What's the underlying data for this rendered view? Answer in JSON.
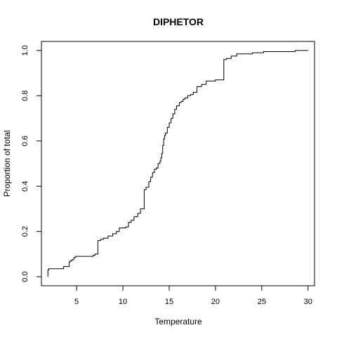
{
  "chart_data": {
    "type": "line",
    "step": true,
    "title": "DIPHETOR",
    "xlabel": "Temperature",
    "ylabel": "Proportion of total",
    "xlim": [
      1.2,
      30.7
    ],
    "ylim": [
      -0.04,
      1.04
    ],
    "xticks": [
      5,
      10,
      15,
      20,
      25,
      30
    ],
    "yticks": [
      0.0,
      0.2,
      0.4,
      0.6,
      0.8,
      1.0
    ],
    "xtick_labels": [
      "5",
      "10",
      "15",
      "20",
      "25",
      "30"
    ],
    "ytick_labels": [
      "0.0",
      "0.2",
      "0.4",
      "0.6",
      "0.8",
      "1.0"
    ],
    "grid": false,
    "series": [
      {
        "x": [
          1.9,
          2.0,
          3.6,
          4.2,
          4.3,
          4.5,
          4.7,
          4.9,
          6.8,
          7.0,
          7.3,
          7.6,
          7.9,
          8.4,
          8.9,
          9.3,
          9.6,
          10.3,
          10.6,
          10.9,
          11.2,
          11.6,
          11.9,
          12.3,
          12.5,
          12.8,
          13.0,
          13.2,
          13.4,
          13.6,
          13.8,
          14.0,
          14.1,
          14.2,
          14.3,
          14.4,
          14.5,
          14.6,
          14.8,
          15.0,
          15.2,
          15.4,
          15.6,
          15.8,
          16.1,
          16.3,
          16.5,
          16.7,
          17.0,
          17.3,
          17.6,
          18.0,
          18.5,
          19.0,
          20.0,
          20.9,
          21.2,
          21.7,
          22.3,
          24.0,
          25.2,
          28.6
        ],
        "y": [
          0.03,
          0.035,
          0.045,
          0.065,
          0.07,
          0.075,
          0.085,
          0.09,
          0.095,
          0.1,
          0.16,
          0.165,
          0.17,
          0.18,
          0.19,
          0.2,
          0.215,
          0.22,
          0.24,
          0.25,
          0.265,
          0.28,
          0.3,
          0.385,
          0.395,
          0.42,
          0.44,
          0.46,
          0.475,
          0.48,
          0.5,
          0.51,
          0.525,
          0.545,
          0.58,
          0.61,
          0.625,
          0.635,
          0.66,
          0.68,
          0.7,
          0.72,
          0.74,
          0.755,
          0.77,
          0.775,
          0.785,
          0.79,
          0.8,
          0.805,
          0.815,
          0.84,
          0.85,
          0.865,
          0.87,
          0.96,
          0.965,
          0.975,
          0.985,
          0.99,
          0.995,
          1.0
        ]
      }
    ]
  }
}
